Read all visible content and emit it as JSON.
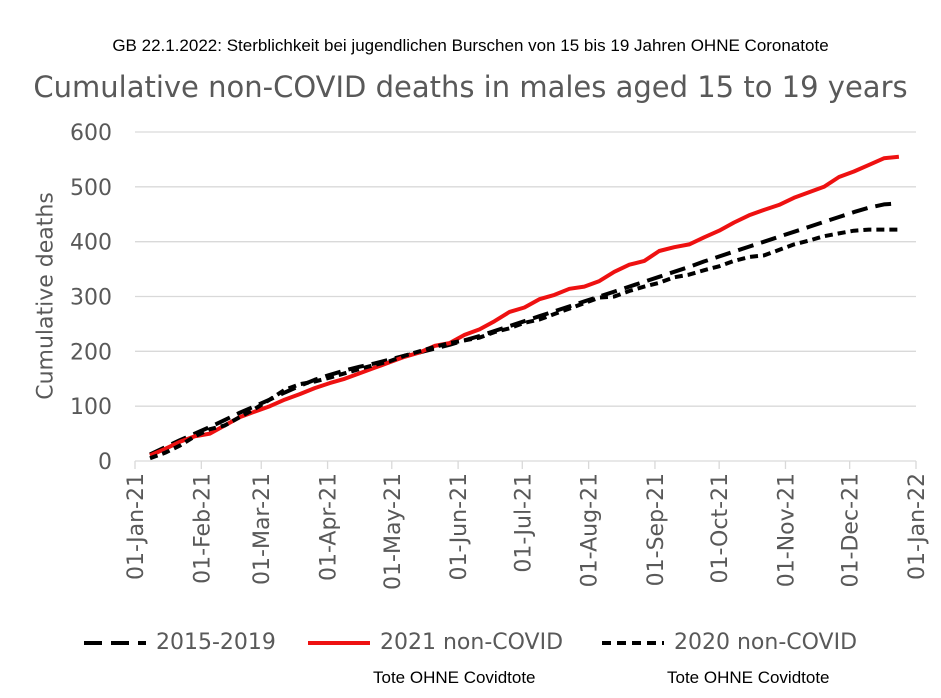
{
  "annotation_top": "GB 22.1.2022: Sterblichkeit bei jugendlichen Burschen von 15 bis 19 Jahren OHNE Coronatote",
  "notes": [
    "Tote OHNE Covidtote",
    "Tote OHNE Covidtote"
  ],
  "colors": {
    "red": "#ee1111",
    "black": "#000000",
    "grid": "#d9d9d9",
    "text": "#595959"
  },
  "chart_data": {
    "type": "line",
    "title": "Cumulative non-COVID deaths in males aged 15 to 19 years",
    "xlabel": "",
    "ylabel": "Cumulative deaths",
    "ylim": [
      0,
      600
    ],
    "yticks": [
      0,
      100,
      200,
      300,
      400,
      500,
      600
    ],
    "xlim": [
      0,
      365
    ],
    "xticks": [
      {
        "day": 0,
        "label": "01-Jan-21"
      },
      {
        "day": 31,
        "label": "01-Feb-21"
      },
      {
        "day": 59,
        "label": "01-Mar-21"
      },
      {
        "day": 90,
        "label": "01-Apr-21"
      },
      {
        "day": 120,
        "label": "01-May-21"
      },
      {
        "day": 151,
        "label": "01-Jun-21"
      },
      {
        "day": 181,
        "label": "01-Jul-21"
      },
      {
        "day": 212,
        "label": "01-Aug-21"
      },
      {
        "day": 243,
        "label": "01-Sep-21"
      },
      {
        "day": 273,
        "label": "01-Oct-21"
      },
      {
        "day": 304,
        "label": "01-Nov-21"
      },
      {
        "day": 334,
        "label": "01-Dec-21"
      },
      {
        "day": 365,
        "label": "01-Jan-22"
      }
    ],
    "legend_position": "bottom",
    "series": [
      {
        "name": "2015-2019",
        "style": "long-dash",
        "color": "#000000",
        "x": [
          7,
          14,
          21,
          28,
          35,
          42,
          49,
          56,
          63,
          70,
          77,
          84,
          91,
          98,
          105,
          112,
          119,
          126,
          133,
          140,
          147,
          154,
          161,
          168,
          175,
          182,
          189,
          196,
          203,
          210,
          217,
          224,
          231,
          238,
          245,
          252,
          259,
          266,
          273,
          280,
          287,
          294,
          301,
          308,
          315,
          322,
          329,
          336,
          343,
          350,
          357
        ],
        "values": [
          12,
          25,
          38,
          50,
          62,
          75,
          88,
          100,
          112,
          125,
          137,
          148,
          157,
          165,
          172,
          178,
          185,
          192,
          198,
          205,
          212,
          220,
          228,
          237,
          246,
          255,
          264,
          273,
          282,
          291,
          300,
          309,
          318,
          327,
          336,
          345,
          354,
          364,
          373,
          382,
          391,
          400,
          409,
          418,
          427,
          436,
          445,
          454,
          462,
          468,
          470
        ]
      },
      {
        "name": "2021 non-COVID",
        "style": "solid",
        "color": "#ee1111",
        "x": [
          7,
          14,
          21,
          28,
          35,
          42,
          49,
          56,
          63,
          70,
          77,
          84,
          91,
          98,
          105,
          112,
          119,
          126,
          133,
          140,
          147,
          154,
          161,
          168,
          175,
          182,
          189,
          196,
          203,
          210,
          217,
          224,
          231,
          238,
          245,
          252,
          259,
          266,
          273,
          280,
          287,
          294,
          301,
          308,
          315,
          322,
          329,
          336,
          343,
          350,
          357
        ],
        "values": [
          10,
          22,
          35,
          45,
          50,
          65,
          80,
          90,
          100,
          112,
          122,
          133,
          142,
          150,
          160,
          170,
          180,
          190,
          198,
          210,
          215,
          230,
          240,
          255,
          272,
          280,
          295,
          303,
          314,
          318,
          328,
          345,
          358,
          365,
          383,
          390,
          395,
          408,
          420,
          435,
          448,
          458,
          467,
          480,
          490,
          500,
          518,
          528,
          540,
          552,
          555
        ]
      },
      {
        "name": "2020 non-COVID",
        "style": "short-dash",
        "color": "#000000",
        "x": [
          7,
          14,
          21,
          28,
          35,
          42,
          49,
          56,
          63,
          70,
          77,
          84,
          91,
          98,
          105,
          112,
          119,
          126,
          133,
          140,
          147,
          154,
          161,
          168,
          175,
          182,
          189,
          196,
          203,
          210,
          217,
          224,
          231,
          238,
          245,
          252,
          259,
          266,
          273,
          280,
          287,
          294,
          301,
          308,
          315,
          322,
          329,
          336,
          343,
          350,
          357
        ],
        "values": [
          5,
          15,
          28,
          45,
          58,
          65,
          80,
          95,
          112,
          130,
          140,
          145,
          152,
          160,
          168,
          175,
          182,
          192,
          200,
          208,
          215,
          220,
          225,
          235,
          242,
          252,
          258,
          268,
          278,
          288,
          298,
          300,
          310,
          318,
          325,
          335,
          340,
          348,
          355,
          365,
          372,
          375,
          385,
          395,
          402,
          410,
          415,
          420,
          422,
          422,
          422
        ]
      }
    ]
  }
}
